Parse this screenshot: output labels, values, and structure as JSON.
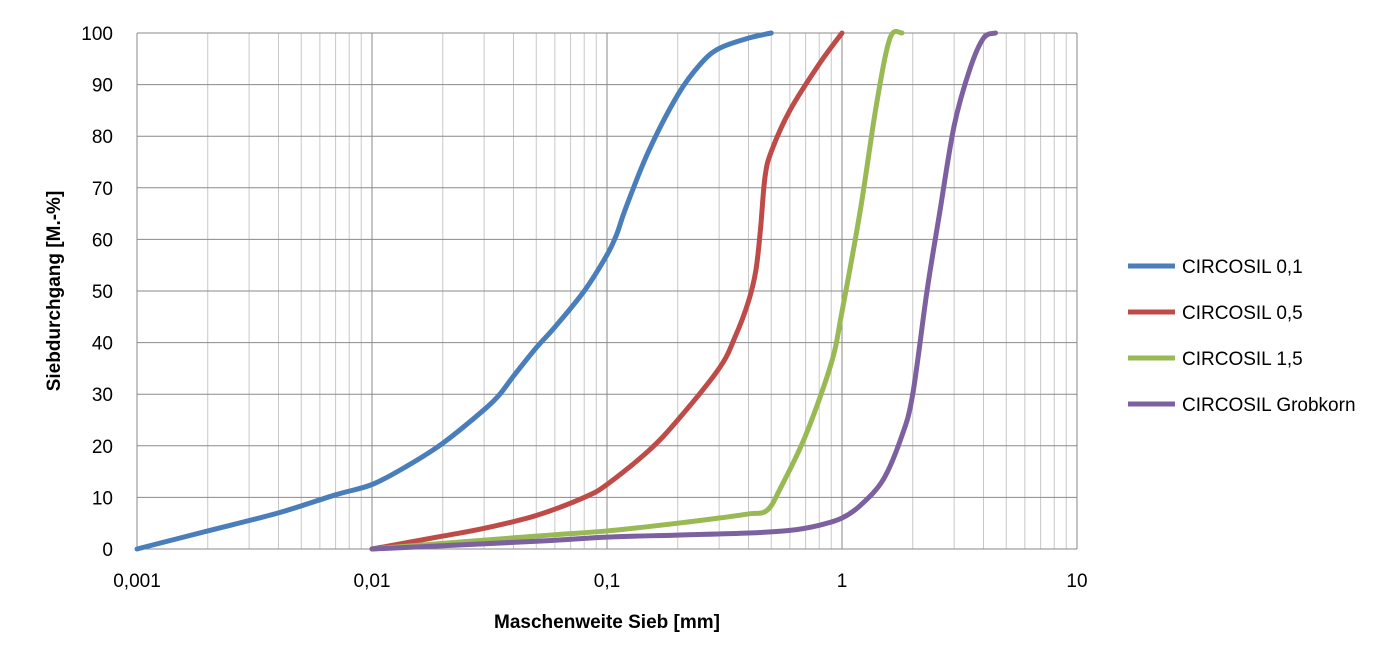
{
  "chart_data": {
    "type": "line",
    "xscale": "log",
    "xlim": [
      0.001,
      10
    ],
    "ylim": [
      0,
      100
    ],
    "xlabel": "Maschenweite Sieb [mm]",
    "ylabel": "Siebdurchgang [M.-%]",
    "x_ticks": [
      "0,001",
      "0,01",
      "0,1",
      "1",
      "10"
    ],
    "y_ticks": [
      "0",
      "10",
      "20",
      "30",
      "40",
      "50",
      "60",
      "70",
      "80",
      "90",
      "100"
    ],
    "grid": true,
    "legend_position": "right",
    "series": [
      {
        "name": "CIRCOSIL 0,1",
        "color": "#4a7ebb",
        "points": [
          [
            0.001,
            0
          ],
          [
            0.002,
            3.5
          ],
          [
            0.004,
            7
          ],
          [
            0.007,
            10.5
          ],
          [
            0.01,
            12.5
          ],
          [
            0.014,
            16
          ],
          [
            0.02,
            20.5
          ],
          [
            0.03,
            27
          ],
          [
            0.035,
            30
          ],
          [
            0.04,
            33.5
          ],
          [
            0.05,
            39
          ],
          [
            0.06,
            43
          ],
          [
            0.08,
            50
          ],
          [
            0.1,
            57
          ],
          [
            0.11,
            61
          ],
          [
            0.12,
            66
          ],
          [
            0.15,
            77
          ],
          [
            0.2,
            88
          ],
          [
            0.25,
            94
          ],
          [
            0.3,
            97
          ],
          [
            0.4,
            99
          ],
          [
            0.5,
            100
          ]
        ]
      },
      {
        "name": "CIRCOSIL 0,5",
        "color": "#be4b48",
        "points": [
          [
            0.01,
            0
          ],
          [
            0.02,
            2.5
          ],
          [
            0.03,
            4
          ],
          [
            0.05,
            6.5
          ],
          [
            0.08,
            10
          ],
          [
            0.1,
            12.5
          ],
          [
            0.15,
            19
          ],
          [
            0.2,
            25
          ],
          [
            0.3,
            35
          ],
          [
            0.35,
            41
          ],
          [
            0.4,
            48
          ],
          [
            0.43,
            54
          ],
          [
            0.45,
            62
          ],
          [
            0.47,
            72
          ],
          [
            0.5,
            77
          ],
          [
            0.6,
            85
          ],
          [
            0.8,
            94
          ],
          [
            1.0,
            100
          ]
        ]
      },
      {
        "name": "CIRCOSIL 1,5",
        "color": "#98b954",
        "points": [
          [
            0.01,
            0
          ],
          [
            0.05,
            2.5
          ],
          [
            0.1,
            3.5
          ],
          [
            0.2,
            5
          ],
          [
            0.3,
            6
          ],
          [
            0.4,
            6.8
          ],
          [
            0.48,
            7.5
          ],
          [
            0.55,
            12
          ],
          [
            0.7,
            22
          ],
          [
            0.9,
            36
          ],
          [
            1.0,
            46
          ],
          [
            1.2,
            66
          ],
          [
            1.4,
            86
          ],
          [
            1.6,
            99
          ],
          [
            1.8,
            100
          ]
        ]
      },
      {
        "name": "CIRCOSIL Grobkorn",
        "color": "#7d60a0",
        "points": [
          [
            0.01,
            0
          ],
          [
            0.05,
            1.5
          ],
          [
            0.1,
            2.3
          ],
          [
            0.2,
            2.7
          ],
          [
            0.4,
            3.1
          ],
          [
            0.6,
            3.6
          ],
          [
            0.8,
            4.6
          ],
          [
            1.0,
            6
          ],
          [
            1.2,
            8.5
          ],
          [
            1.5,
            13.5
          ],
          [
            1.8,
            22
          ],
          [
            2.0,
            30
          ],
          [
            2.3,
            50
          ],
          [
            2.6,
            65
          ],
          [
            3.0,
            82
          ],
          [
            3.5,
            93
          ],
          [
            4.0,
            99
          ],
          [
            4.5,
            100
          ]
        ]
      }
    ]
  }
}
